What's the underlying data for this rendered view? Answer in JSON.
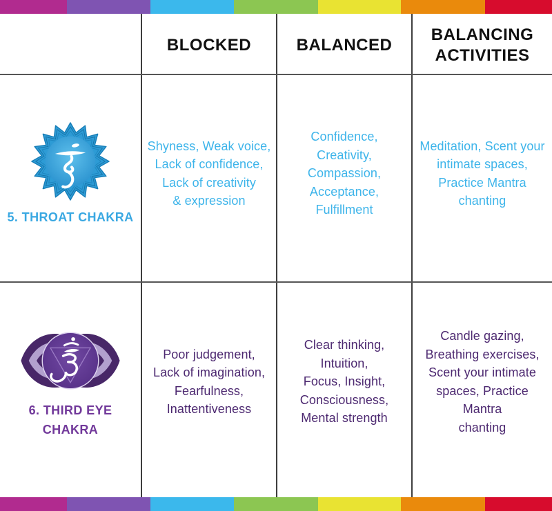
{
  "palette": {
    "rainbow_strip": [
      "#b12b8f",
      "#7f54b2",
      "#3bb8ec",
      "#8cc652",
      "#e9e332",
      "#ea8a0c",
      "#d70c2d"
    ],
    "throat_text": "#3db4ea",
    "throat_label": "#3aa8e2",
    "third_eye_text": "#4c2870",
    "third_eye_label": "#71389a",
    "header_text": "#111111",
    "grid_line_horizontal": "#565656",
    "grid_line_vertical": "#3e3e3e",
    "throat_icon_blue": "#2d9bd5",
    "third_eye_icon_purple": "#482768"
  },
  "header": {
    "columns": [
      "",
      "BLOCKED",
      "BALANCED",
      "BALANCING\nACTIVITIES"
    ]
  },
  "rows": [
    {
      "label": "5. THROAT CHAKRA",
      "icon": "throat-chakra-icon",
      "blocked": "Shyness, Weak voice,\nLack of confidence,\nLack of creativity\n& expression",
      "balanced": "Confidence, Creativity,\nCompassion,\nAcceptance,\nFulfillment",
      "balancing_activities": "Meditation, Scent your\nintimate spaces,\nPractice Mantra\nchanting"
    },
    {
      "label": "6. THIRD EYE\nCHAKRA",
      "icon": "third-eye-chakra-icon",
      "blocked": "Poor judgement,\nLack of imagination,\nFearfulness,\nInattentiveness",
      "balanced": "Clear thinking, Intuition,\nFocus, Insight,\nConsciousness,\nMental strength",
      "balancing_activities": "Candle gazing,\nBreathing exercises,\nScent your intimate\nspaces, Practice Mantra\nchanting"
    }
  ]
}
